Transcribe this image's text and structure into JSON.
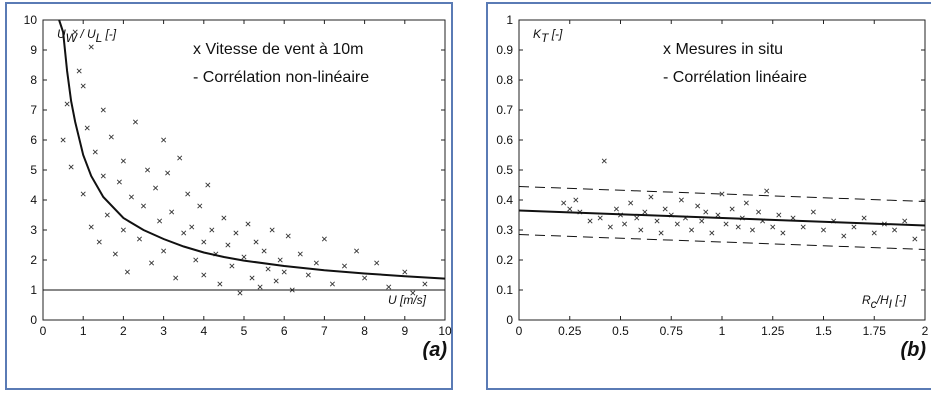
{
  "panels": [
    {
      "tag": "(a)",
      "legend": {
        "marker": "x",
        "series_label": "Vitesse de vent à 10m",
        "line_marker": "-",
        "line_label": "Corrélation non-linéaire"
      },
      "ylabel": {
        "main": "U",
        "sub1": "W",
        "mid": " / U",
        "sub2": "L",
        "unit": " [-]"
      },
      "xlabel": {
        "main": "U",
        "sub": "",
        "unit": " [m/s]"
      },
      "x_ticks": [
        "0",
        "1",
        "2",
        "3",
        "4",
        "5",
        "6",
        "7",
        "8",
        "9",
        "10"
      ],
      "y_ticks": [
        "0",
        "1",
        "2",
        "3",
        "4",
        "5",
        "6",
        "7",
        "8",
        "9",
        "10"
      ]
    },
    {
      "tag": "(b)",
      "legend": {
        "marker": "x",
        "series_label": "Mesures in situ",
        "line_marker": "-",
        "line_label": "Corrélation linéaire"
      },
      "ylabel": {
        "main": "K",
        "sub1": "T",
        "mid": "",
        "sub2": "",
        "unit": " [-]"
      },
      "xlabel": {
        "main": "R",
        "sub": "c",
        "mid": "/H",
        "sub2": "I",
        "unit": " [-]"
      },
      "x_ticks": [
        "0",
        "0.25",
        "0.5",
        "0.75",
        "1",
        "1.25",
        "1.5",
        "1.75",
        "2"
      ],
      "y_ticks": [
        "0",
        "0.1",
        "0.2",
        "0.3",
        "0.4",
        "0.5",
        "0.6",
        "0.7",
        "0.8",
        "0.9",
        "1"
      ]
    }
  ],
  "chart_data": [
    {
      "type": "scatter",
      "xlim": [
        0,
        10
      ],
      "ylim": [
        0,
        10
      ],
      "grid": false,
      "legend_placement": "top-right",
      "series": [
        {
          "name": "Vitesse de vent à 10m",
          "marker": "x",
          "points": [
            [
              0.5,
              6.0
            ],
            [
              0.6,
              7.2
            ],
            [
              0.7,
              5.1
            ],
            [
              0.8,
              9.6
            ],
            [
              0.9,
              8.3
            ],
            [
              1.0,
              4.2
            ],
            [
              1.0,
              7.8
            ],
            [
              1.1,
              6.4
            ],
            [
              1.2,
              9.1
            ],
            [
              1.2,
              3.1
            ],
            [
              1.3,
              5.6
            ],
            [
              1.4,
              2.6
            ],
            [
              1.5,
              7.0
            ],
            [
              1.5,
              4.8
            ],
            [
              1.6,
              3.5
            ],
            [
              1.7,
              6.1
            ],
            [
              1.8,
              2.2
            ],
            [
              1.9,
              4.6
            ],
            [
              2.0,
              5.3
            ],
            [
              2.0,
              3.0
            ],
            [
              2.1,
              1.6
            ],
            [
              2.2,
              4.1
            ],
            [
              2.3,
              6.6
            ],
            [
              2.4,
              2.7
            ],
            [
              2.5,
              3.8
            ],
            [
              2.6,
              5.0
            ],
            [
              2.7,
              1.9
            ],
            [
              2.8,
              4.4
            ],
            [
              2.9,
              3.3
            ],
            [
              3.0,
              6.0
            ],
            [
              3.0,
              2.3
            ],
            [
              3.1,
              4.9
            ],
            [
              3.2,
              3.6
            ],
            [
              3.3,
              1.4
            ],
            [
              3.4,
              5.4
            ],
            [
              3.5,
              2.9
            ],
            [
              3.6,
              4.2
            ],
            [
              3.7,
              3.1
            ],
            [
              3.8,
              2.0
            ],
            [
              3.9,
              3.8
            ],
            [
              4.0,
              2.6
            ],
            [
              4.0,
              1.5
            ],
            [
              4.1,
              4.5
            ],
            [
              4.2,
              3.0
            ],
            [
              4.3,
              2.2
            ],
            [
              4.4,
              1.2
            ],
            [
              4.5,
              3.4
            ],
            [
              4.6,
              2.5
            ],
            [
              4.7,
              1.8
            ],
            [
              4.8,
              2.9
            ],
            [
              4.9,
              0.9
            ],
            [
              5.0,
              2.1
            ],
            [
              5.1,
              3.2
            ],
            [
              5.2,
              1.4
            ],
            [
              5.3,
              2.6
            ],
            [
              5.4,
              1.1
            ],
            [
              5.5,
              2.3
            ],
            [
              5.6,
              1.7
            ],
            [
              5.7,
              3.0
            ],
            [
              5.8,
              1.3
            ],
            [
              5.9,
              2.0
            ],
            [
              6.0,
              1.6
            ],
            [
              6.1,
              2.8
            ],
            [
              6.2,
              1.0
            ],
            [
              6.4,
              2.2
            ],
            [
              6.6,
              1.5
            ],
            [
              6.8,
              1.9
            ],
            [
              7.0,
              2.7
            ],
            [
              7.2,
              1.2
            ],
            [
              7.5,
              1.8
            ],
            [
              7.8,
              2.3
            ],
            [
              8.0,
              1.4
            ],
            [
              8.3,
              1.9
            ],
            [
              8.6,
              1.1
            ],
            [
              9.0,
              1.6
            ],
            [
              9.2,
              0.9
            ],
            [
              9.5,
              1.2
            ]
          ]
        },
        {
          "name": "Corrélation non-linéaire",
          "type": "line",
          "x": [
            0.4,
            0.5,
            0.6,
            0.7,
            0.8,
            1.0,
            1.2,
            1.5,
            2.0,
            2.5,
            3.0,
            3.5,
            4.0,
            4.5,
            5.0,
            6.0,
            7.0,
            8.0,
            9.0,
            10.0
          ],
          "y": [
            10.0,
            9.6,
            8.3,
            7.3,
            6.6,
            5.5,
            4.8,
            4.1,
            3.4,
            3.0,
            2.7,
            2.45,
            2.25,
            2.1,
            1.98,
            1.8,
            1.66,
            1.55,
            1.46,
            1.38
          ]
        },
        {
          "name": "",
          "type": "hline",
          "y": 1.0
        }
      ]
    },
    {
      "type": "scatter",
      "xlim": [
        0,
        2
      ],
      "ylim": [
        0,
        1
      ],
      "grid": false,
      "legend_placement": "top-right",
      "series": [
        {
          "name": "Mesures in situ",
          "marker": "x",
          "points": [
            [
              0.22,
              0.39
            ],
            [
              0.25,
              0.37
            ],
            [
              0.28,
              0.4
            ],
            [
              0.3,
              0.36
            ],
            [
              0.35,
              0.33
            ],
            [
              0.4,
              0.34
            ],
            [
              0.42,
              0.53
            ],
            [
              0.45,
              0.31
            ],
            [
              0.48,
              0.37
            ],
            [
              0.5,
              0.35
            ],
            [
              0.52,
              0.32
            ],
            [
              0.55,
              0.39
            ],
            [
              0.58,
              0.34
            ],
            [
              0.6,
              0.3
            ],
            [
              0.62,
              0.36
            ],
            [
              0.65,
              0.41
            ],
            [
              0.68,
              0.33
            ],
            [
              0.7,
              0.29
            ],
            [
              0.72,
              0.37
            ],
            [
              0.75,
              0.35
            ],
            [
              0.78,
              0.32
            ],
            [
              0.8,
              0.4
            ],
            [
              0.82,
              0.34
            ],
            [
              0.85,
              0.3
            ],
            [
              0.88,
              0.38
            ],
            [
              0.9,
              0.33
            ],
            [
              0.92,
              0.36
            ],
            [
              0.95,
              0.29
            ],
            [
              0.98,
              0.35
            ],
            [
              1.0,
              0.42
            ],
            [
              1.02,
              0.32
            ],
            [
              1.05,
              0.37
            ],
            [
              1.08,
              0.31
            ],
            [
              1.1,
              0.34
            ],
            [
              1.12,
              0.39
            ],
            [
              1.15,
              0.3
            ],
            [
              1.18,
              0.36
            ],
            [
              1.2,
              0.33
            ],
            [
              1.22,
              0.43
            ],
            [
              1.25,
              0.31
            ],
            [
              1.28,
              0.35
            ],
            [
              1.3,
              0.29
            ],
            [
              1.35,
              0.34
            ],
            [
              1.4,
              0.31
            ],
            [
              1.45,
              0.36
            ],
            [
              1.5,
              0.3
            ],
            [
              1.55,
              0.33
            ],
            [
              1.6,
              0.28
            ],
            [
              1.65,
              0.31
            ],
            [
              1.7,
              0.34
            ],
            [
              1.75,
              0.29
            ],
            [
              1.8,
              0.32
            ],
            [
              1.85,
              0.3
            ],
            [
              1.9,
              0.33
            ],
            [
              1.95,
              0.27
            ]
          ]
        },
        {
          "name": "Corrélation linéaire",
          "type": "line",
          "x": [
            0,
            2
          ],
          "y": [
            0.365,
            0.315
          ]
        },
        {
          "name": "",
          "type": "line",
          "style": "dashed",
          "x": [
            0,
            2
          ],
          "y": [
            0.445,
            0.395
          ]
        },
        {
          "name": "",
          "type": "line",
          "style": "dashed",
          "x": [
            0,
            2
          ],
          "y": [
            0.285,
            0.235
          ]
        }
      ]
    }
  ]
}
